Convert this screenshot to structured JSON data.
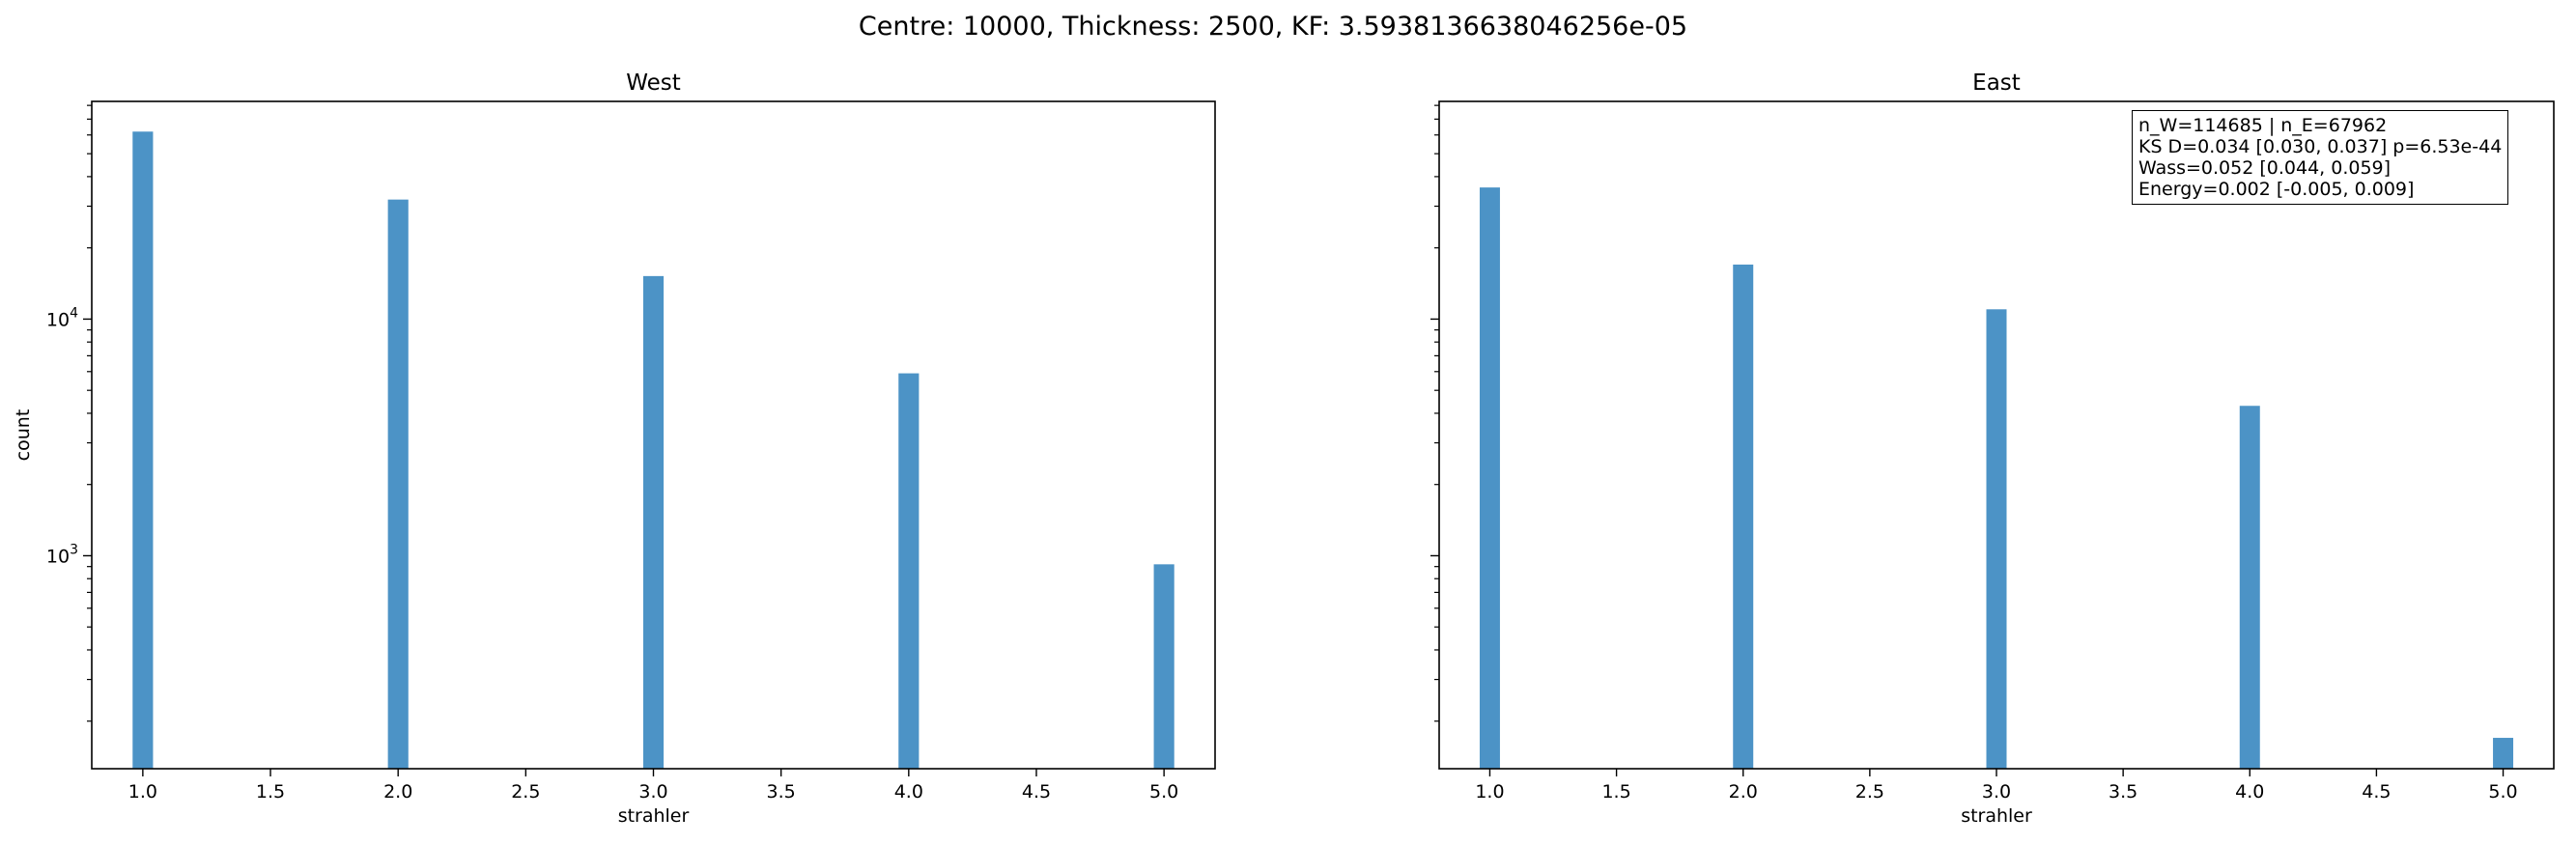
{
  "suptitle": "Centre: 10000, Thickness: 2500, KF: 3.5938136638046256e-05",
  "chart_data": [
    {
      "type": "bar",
      "title": "West",
      "xlabel": "strahler",
      "ylabel": "count",
      "yscale": "log",
      "xlim": [
        0.8,
        5.2
      ],
      "ylim_log10": [
        2.1,
        4.92
      ],
      "xticks": [
        "1.0",
        "1.5",
        "2.0",
        "2.5",
        "3.0",
        "3.5",
        "4.0",
        "4.5",
        "5.0"
      ],
      "yticks": [
        {
          "base": "10",
          "exp": "3",
          "value": 1000
        },
        {
          "base": "10",
          "exp": "4",
          "value": 10000
        }
      ],
      "color": "#4c93c6",
      "x": [
        1,
        2,
        3,
        4,
        5
      ],
      "values": [
        62000,
        32000,
        15200,
        5900,
        920
      ]
    },
    {
      "type": "bar",
      "title": "East",
      "xlabel": "strahler",
      "ylabel": "",
      "yscale": "log",
      "xlim": [
        0.8,
        5.2
      ],
      "ylim_log10": [
        2.1,
        4.92
      ],
      "xticks": [
        "1.0",
        "1.5",
        "2.0",
        "2.5",
        "3.0",
        "3.5",
        "4.0",
        "4.5",
        "5.0"
      ],
      "yticks": [],
      "color": "#4c93c6",
      "x": [
        1,
        2,
        3,
        4,
        5
      ],
      "values": [
        36000,
        17000,
        11000,
        4300,
        170
      ],
      "annotation": [
        "n_W=114685 | n_E=67962",
        "KS D=0.034 [0.030, 0.037]  p=6.53e-44",
        "Wass=0.052 [0.044, 0.059]",
        "Energy=0.002 [-0.005, 0.009]"
      ]
    }
  ]
}
